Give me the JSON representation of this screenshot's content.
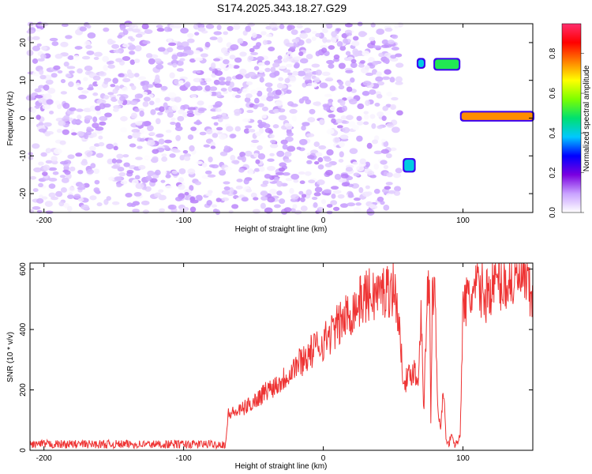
{
  "title": "S174.2025.343.18.27.G29",
  "chart_data": [
    {
      "type": "heatmap",
      "xlabel": "Height of straight line (km)",
      "ylabel": "Frequency (Hz)",
      "xlim": [
        -210,
        150
      ],
      "ylim": [
        -25,
        25
      ],
      "xticks": [
        "-200",
        "-100",
        "0",
        "100"
      ],
      "xtick_values": [
        -200,
        -100,
        0,
        100
      ],
      "yticks": [
        "20",
        "10",
        "0",
        "-10",
        "-20"
      ],
      "ytick_values": [
        20,
        10,
        0,
        -10,
        -20
      ],
      "colorbar": {
        "label": "Normalized spectral amplitude",
        "range": [
          0,
          0.95
        ],
        "ticks": [
          "0.0",
          "0.2",
          "0.4",
          "0.6",
          "0.8"
        ],
        "tick_values": [
          0.0,
          0.2,
          0.4,
          0.6,
          0.8
        ],
        "colors": [
          "#ffffff",
          "#c9a2ff",
          "#7a00e0",
          "#0000ff",
          "#00c8ff",
          "#00e070",
          "#7cff00",
          "#ffff00",
          "#ff8000",
          "#ff0000",
          "#ff2e6e"
        ]
      },
      "features": [
        {
          "x_range": [
            -210,
            55
          ],
          "y_range": [
            -25,
            25
          ],
          "description_level": "noise",
          "amplitude": 0.12
        },
        {
          "x_range": [
            58,
            65
          ],
          "y_range": [
            -14,
            -11
          ],
          "amplitude": 0.4
        },
        {
          "x_range": [
            68,
            72
          ],
          "y_range": [
            13.5,
            15.5
          ],
          "amplitude": 0.4
        },
        {
          "x_range": [
            80,
            97
          ],
          "y_range": [
            13,
            15.5
          ],
          "amplitude": 0.5
        },
        {
          "x_range": [
            99,
            150
          ],
          "y_range": [
            -0.5,
            1.5
          ],
          "amplitude": 0.75
        }
      ]
    },
    {
      "type": "line",
      "xlabel": "Height of straight line (km)",
      "ylabel": "SNR (10 * v/v)",
      "xlim": [
        -210,
        150
      ],
      "ylim": [
        0,
        620
      ],
      "xticks": [
        "-200",
        "-100",
        "0",
        "100"
      ],
      "xtick_values": [
        -200,
        -100,
        0,
        100
      ],
      "yticks": [
        "0",
        "200",
        "400",
        "600"
      ],
      "ytick_values": [
        0,
        200,
        400,
        600
      ],
      "series": [
        {
          "color": "#ee3333",
          "x": [
            -210,
            -150,
            -100,
            -70,
            -68,
            -60,
            -50,
            -40,
            -30,
            -20,
            -10,
            0,
            10,
            20,
            30,
            40,
            50,
            53,
            56,
            58,
            60,
            62,
            65,
            68,
            70,
            72,
            74,
            75,
            76,
            77,
            78,
            80,
            82,
            84,
            86,
            88,
            90,
            92,
            94,
            96,
            98,
            100,
            104,
            108,
            112,
            116,
            120,
            125,
            130,
            135,
            140,
            145,
            150
          ],
          "y": [
            20,
            20,
            20,
            20,
            120,
            130,
            160,
            200,
            230,
            280,
            320,
            360,
            410,
            460,
            510,
            520,
            540,
            480,
            300,
            240,
            230,
            250,
            270,
            220,
            500,
            120,
            480,
            520,
            530,
            80,
            540,
            520,
            150,
            60,
            210,
            30,
            20,
            60,
            10,
            30,
            50,
            480,
            500,
            520,
            540,
            510,
            540,
            560,
            550,
            560,
            570,
            560,
            480
          ]
        }
      ]
    }
  ]
}
